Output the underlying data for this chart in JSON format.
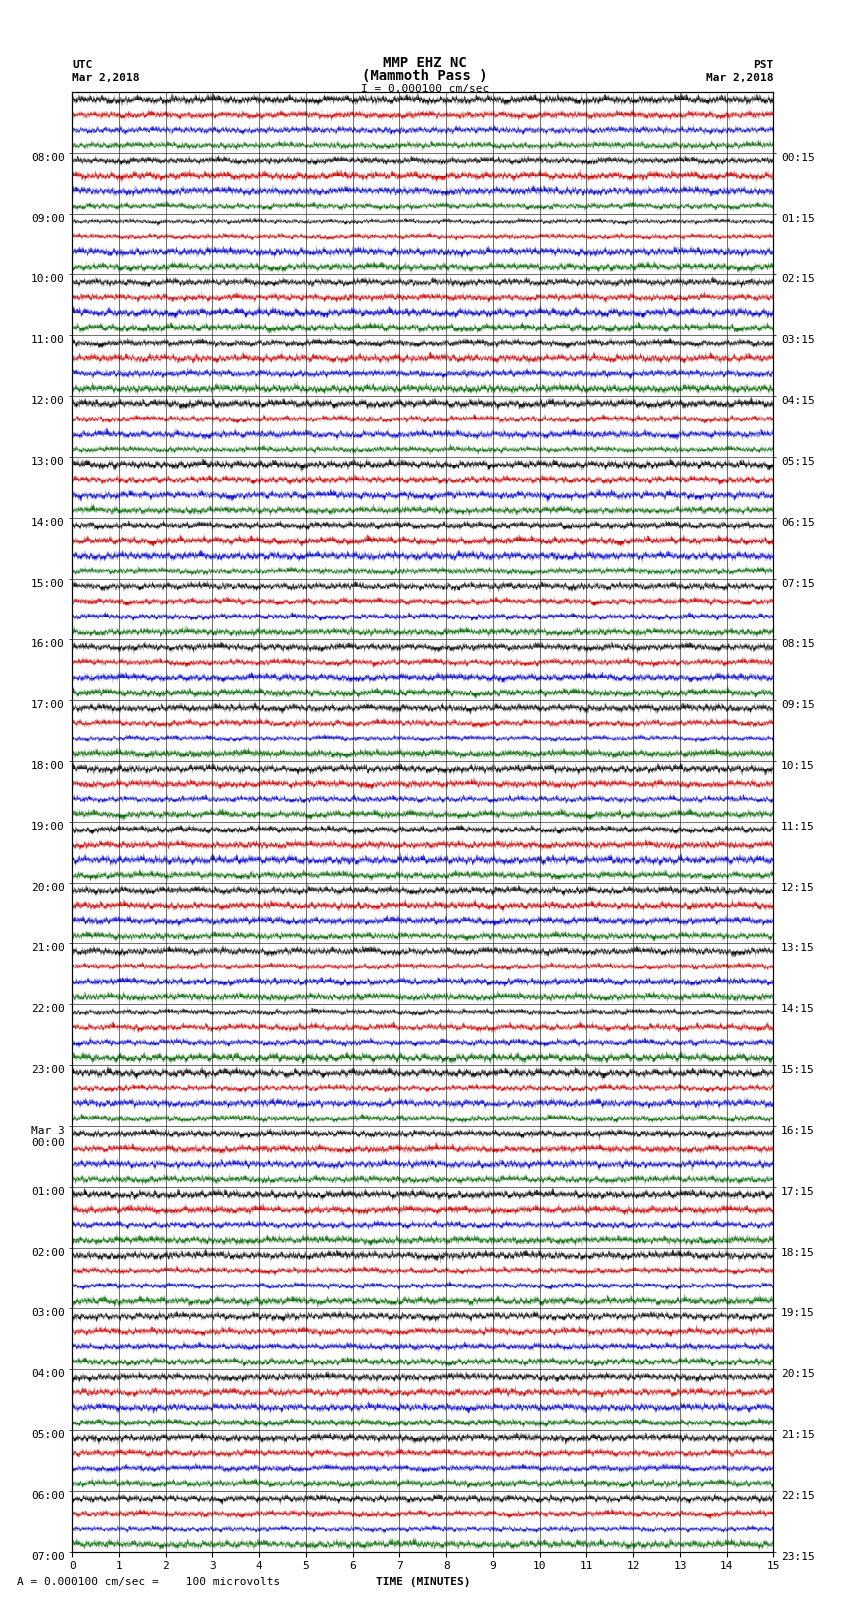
{
  "title_line1": "MMP EHZ NC",
  "title_line2": "(Mammoth Pass )",
  "scale_text": "I = 0.000100 cm/sec",
  "utc_label": "UTC",
  "utc_date": "Mar 2,2018",
  "pst_label": "PST",
  "pst_date": "Mar 2,2018",
  "footer_text": "A = 0.000100 cm/sec =    100 microvolts",
  "xlabel": "TIME (MINUTES)",
  "left_times": [
    "08:00",
    "09:00",
    "10:00",
    "11:00",
    "12:00",
    "13:00",
    "14:00",
    "15:00",
    "16:00",
    "17:00",
    "18:00",
    "19:00",
    "20:00",
    "21:00",
    "22:00",
    "23:00",
    "Mar 3\n00:00",
    "01:00",
    "02:00",
    "03:00",
    "04:00",
    "05:00",
    "06:00",
    "07:00"
  ],
  "right_times": [
    "00:15",
    "01:15",
    "02:15",
    "03:15",
    "04:15",
    "05:15",
    "06:15",
    "07:15",
    "08:15",
    "09:15",
    "10:15",
    "11:15",
    "12:15",
    "13:15",
    "14:15",
    "15:15",
    "16:15",
    "17:15",
    "18:15",
    "19:15",
    "20:15",
    "21:15",
    "22:15",
    "23:15"
  ],
  "n_rows": 24,
  "n_traces_per_row": 4,
  "minutes_per_row": 15,
  "colors": [
    "#000000",
    "#cc0000",
    "#0000cc",
    "#006600"
  ],
  "bg_color": "#ffffff",
  "figsize": [
    8.5,
    16.13
  ],
  "dpi": 100,
  "xlim": [
    0,
    15
  ],
  "xticks": [
    0,
    1,
    2,
    3,
    4,
    5,
    6,
    7,
    8,
    9,
    10,
    11,
    12,
    13,
    14,
    15
  ],
  "title_fontsize": 10,
  "label_fontsize": 8,
  "tick_fontsize": 8
}
